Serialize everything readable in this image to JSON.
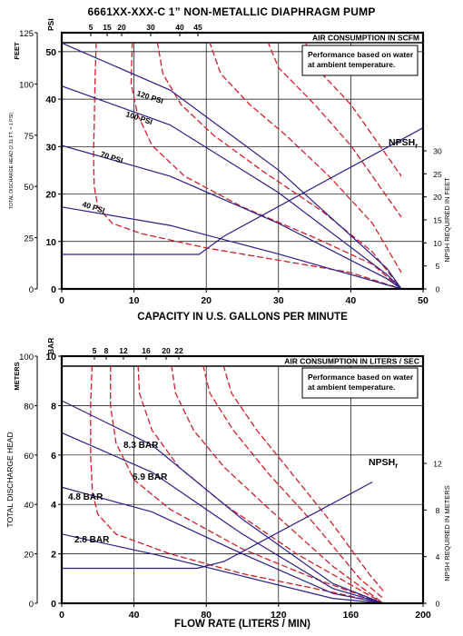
{
  "title": "6661XX-XXX-C   1” NON-METALLIC DIAPHRAGM PUMP",
  "colors": {
    "pressure": "#2b1f8a",
    "air": "#d0202a",
    "grid": "#000000",
    "frame": "#000000"
  },
  "chart_data": [
    {
      "type": "line",
      "xlabel": "CAPACITY IN U.S. GALLONS PER MINUTE",
      "xlim": [
        0,
        50
      ],
      "xticks": [
        0,
        10,
        20,
        30,
        40,
        50
      ],
      "left_axes": [
        {
          "label": "FEET",
          "ticks": [
            0,
            25,
            50,
            75,
            100,
            125
          ],
          "ylim": [
            0,
            125
          ]
        },
        {
          "label": "PSI",
          "ticks": [
            0,
            10,
            20,
            30,
            40,
            50
          ],
          "ylim": [
            0,
            54
          ]
        }
      ],
      "left_side_label": "TOTAL DISCHARGE HEAD (2.31 FT. = 1 PSI)",
      "top_axis": {
        "label": "AIR CONSUMPTION IN SCFM",
        "ticks": [
          "5",
          "15",
          "20",
          "30",
          "40",
          "45"
        ]
      },
      "right_axis": {
        "label": "NPSH REQUIRED IN FEET",
        "ticks": [
          0,
          5,
          10,
          15,
          20,
          25,
          30
        ],
        "ylim": [
          0,
          30
        ]
      },
      "note": [
        "Performance based on water",
        "at ambient temperature."
      ],
      "npsh_label": "NPSH",
      "npsh_sub": "r",
      "pressure_series": [
        {
          "name": "120 PSI",
          "label": true,
          "points": [
            [
              0,
              120
            ],
            [
              15,
              97
            ],
            [
              30,
              58
            ],
            [
              45,
              10
            ],
            [
              47,
              0
            ]
          ]
        },
        {
          "name": "100 PSI",
          "label": true,
          "points": [
            [
              0,
              99
            ],
            [
              15,
              80
            ],
            [
              30,
              47
            ],
            [
              45,
              7
            ],
            [
              47,
              0
            ]
          ]
        },
        {
          "name": "70 PSI",
          "label": true,
          "points": [
            [
              0,
              70
            ],
            [
              15,
              55
            ],
            [
              30,
              32
            ],
            [
              45,
              5
            ],
            [
              47,
              0
            ]
          ]
        },
        {
          "name": "40 PSI",
          "label": true,
          "points": [
            [
              0,
              40
            ],
            [
              15,
              31
            ],
            [
              30,
              17
            ],
            [
              45,
              2
            ],
            [
              47,
              0
            ]
          ]
        }
      ],
      "air_series": [
        {
          "name": "5",
          "points": [
            [
              4.8,
              125
            ],
            [
              4.6,
              100
            ],
            [
              4.5,
              80
            ],
            [
              4.4,
              65
            ],
            [
              4.5,
              50
            ],
            [
              5,
              40
            ],
            [
              7,
              32
            ],
            [
              11,
              27
            ],
            [
              20,
              20
            ],
            [
              30,
              14
            ],
            [
              40,
              8
            ],
            [
              47,
              0
            ]
          ]
        },
        {
          "name": "15",
          "points": [
            [
              9.8,
              125
            ],
            [
              9.6,
              100
            ],
            [
              10.5,
              85
            ],
            [
              12.5,
              70
            ],
            [
              17,
              55
            ],
            [
              25,
              40
            ],
            [
              35,
              25
            ],
            [
              43,
              12
            ],
            [
              47,
              0
            ]
          ]
        },
        {
          "name": "20",
          "points": [
            [
              13,
              125
            ],
            [
              14,
              105
            ],
            [
              16.5,
              90
            ],
            [
              21,
              75
            ],
            [
              28,
              57
            ],
            [
              36,
              38
            ],
            [
              43,
              18
            ],
            [
              47,
              0
            ]
          ]
        },
        {
          "name": "30",
          "points": [
            [
              20,
              125
            ],
            [
              22,
              105
            ],
            [
              26,
              90
            ],
            [
              31,
              75
            ],
            [
              37,
              55
            ],
            [
              43,
              32
            ],
            [
              47,
              8
            ]
          ]
        },
        {
          "name": "40",
          "points": [
            [
              28,
              125
            ],
            [
              30,
              108
            ],
            [
              35,
              90
            ],
            [
              40,
              70
            ],
            [
              45,
              45
            ],
            [
              47,
              35
            ]
          ]
        },
        {
          "name": "45",
          "points": [
            [
              33,
              125
            ],
            [
              36,
              105
            ],
            [
              40,
              90
            ],
            [
              45,
              65
            ],
            [
              47,
              55
            ]
          ]
        }
      ],
      "npsh_points": [
        [
          0,
          7.5
        ],
        [
          19,
          7.5
        ],
        [
          22.5,
          11.5
        ],
        [
          50,
          35
        ]
      ]
    },
    {
      "type": "line",
      "xlabel": "FLOW RATE (LITERS / MIN)",
      "xlim": [
        0,
        200
      ],
      "xticks": [
        0,
        40,
        80,
        120,
        160,
        200
      ],
      "left_axes": [
        {
          "label": "METERS",
          "ticks": [
            0,
            20,
            40,
            60,
            80,
            100
          ],
          "ylim": [
            0,
            100
          ]
        },
        {
          "label": "BAR",
          "ticks": [
            0,
            2,
            4,
            6,
            8,
            10
          ],
          "ylim": [
            0,
            10
          ]
        }
      ],
      "left_side_label": "TOTAL DISCHARGE HEAD",
      "top_axis": {
        "label": "AIR CONSUMPTION IN LITERS / SEC",
        "ticks": [
          "5",
          "8",
          "12",
          "16",
          "20",
          "22"
        ]
      },
      "right_axis": {
        "label": "NPSH REQUIRED IN METERS",
        "ticks": [
          0,
          4,
          8,
          12
        ],
        "ylim": [
          0,
          12
        ]
      },
      "note": [
        "Performance based on water",
        "at ambient temperature."
      ],
      "npsh_label": "NPSH",
      "npsh_sub": "r",
      "pressure_series": [
        {
          "name": "8.3 BAR",
          "label": true,
          "points": [
            [
              0,
              82
            ],
            [
              50,
              64
            ],
            [
              100,
              34
            ],
            [
              150,
              8
            ],
            [
              178,
              0
            ]
          ]
        },
        {
          "name": "6.9 BAR",
          "label": true,
          "points": [
            [
              0,
              69
            ],
            [
              50,
              53
            ],
            [
              100,
              28
            ],
            [
              150,
              6
            ],
            [
              178,
              0
            ]
          ]
        },
        {
          "name": "4.8 BAR",
          "label": true,
          "points": [
            [
              0,
              47
            ],
            [
              50,
              37
            ],
            [
              100,
              20
            ],
            [
              150,
              4
            ],
            [
              178,
              0
            ]
          ]
        },
        {
          "name": "2.8 BAR",
          "label": true,
          "points": [
            [
              0,
              28
            ],
            [
              50,
              20
            ],
            [
              100,
              11
            ],
            [
              150,
              2
            ],
            [
              178,
              0
            ]
          ]
        }
      ],
      "air_series": [
        {
          "name": "5",
          "points": [
            [
              17,
              100
            ],
            [
              16,
              80
            ],
            [
              16,
              60
            ],
            [
              17,
              45
            ],
            [
              20,
              36
            ],
            [
              30,
              28
            ],
            [
              60,
              20
            ],
            [
              100,
              12
            ],
            [
              140,
              6
            ],
            [
              178,
              0
            ]
          ]
        },
        {
          "name": "8",
          "points": [
            [
              27,
              100
            ],
            [
              27,
              80
            ],
            [
              30,
              65
            ],
            [
              40,
              50
            ],
            [
              60,
              38
            ],
            [
              100,
              22
            ],
            [
              140,
              10
            ],
            [
              178,
              0
            ]
          ]
        },
        {
          "name": "12",
          "points": [
            [
              42,
              100
            ],
            [
              43,
              85
            ],
            [
              50,
              70
            ],
            [
              65,
              55
            ],
            [
              90,
              40
            ],
            [
              130,
              20
            ],
            [
              178,
              0
            ]
          ]
        },
        {
          "name": "16",
          "points": [
            [
              60,
              100
            ],
            [
              63,
              85
            ],
            [
              73,
              70
            ],
            [
              90,
              55
            ],
            [
              115,
              38
            ],
            [
              150,
              15
            ],
            [
              178,
              0
            ]
          ]
        },
        {
          "name": "20",
          "points": [
            [
              77,
              100
            ],
            [
              82,
              85
            ],
            [
              95,
              70
            ],
            [
              115,
              52
            ],
            [
              140,
              32
            ],
            [
              165,
              10
            ],
            [
              178,
              2
            ]
          ]
        },
        {
          "name": "22",
          "points": [
            [
              88,
              100
            ],
            [
              94,
              85
            ],
            [
              108,
              70
            ],
            [
              128,
              52
            ],
            [
              150,
              32
            ],
            [
              170,
              12
            ],
            [
              178,
              5
            ]
          ]
        }
      ],
      "npsh_points": [
        [
          0,
          3.0
        ],
        [
          75,
          3.0
        ],
        [
          90,
          3.6
        ],
        [
          172,
          10.4
        ]
      ]
    }
  ]
}
